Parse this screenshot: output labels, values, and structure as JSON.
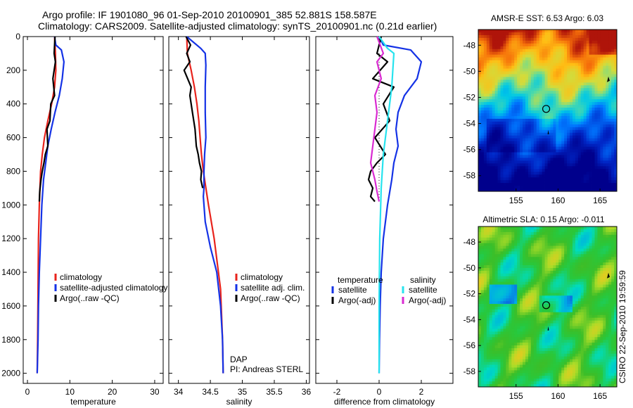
{
  "title": {
    "line1": "Argo profile: IF 1901080_96 01-Sep-2010 20100901_385 52.881S 158.587E",
    "line2": "Climatology: CARS2009. Satellite-adjusted climatology: synTS_20100901.nc (0.21d earlier)"
  },
  "footer_note": "CSIRO 22-Sep-2010 19:59:59",
  "colors": {
    "red": "#e8231c",
    "blue": "#1432e6",
    "black": "#000000",
    "cyan": "#27e3ee",
    "magenta": "#d92ad1"
  },
  "chart_data": [
    {
      "type": "line",
      "id": "temperature",
      "xlabel": "temperature",
      "xlim": [
        -1,
        32
      ],
      "ylim": [
        2060,
        0
      ],
      "xticks": [
        0,
        10,
        20,
        30
      ],
      "yticks": [
        0,
        200,
        400,
        600,
        800,
        1000,
        1200,
        1400,
        1600,
        1800,
        2000
      ],
      "legend": {
        "placement": "lower-middle",
        "entries": [
          {
            "label": "climatology",
            "color": "red"
          },
          {
            "label": "satellite-adjusted climatology",
            "color": "blue"
          },
          {
            "label": "Argo(..raw -QC)",
            "color": "black"
          }
        ]
      },
      "series": [
        {
          "name": "climatology",
          "color": "red",
          "x": [
            6.4,
            6.6,
            6.7,
            6.4,
            5.7,
            4.8,
            4.0,
            3.5,
            3.1,
            2.8,
            2.6,
            2.5,
            2.4,
            2.3
          ],
          "y": [
            0,
            100,
            200,
            300,
            400,
            500,
            600,
            700,
            800,
            1000,
            1200,
            1500,
            1800,
            2000
          ]
        },
        {
          "name": "satellite-adjusted climatology",
          "color": "blue",
          "x": [
            6.4,
            6.7,
            8.0,
            8.6,
            8.2,
            7.5,
            6.5,
            5.6,
            4.8,
            4.3,
            3.8,
            3.4,
            3.1,
            2.8,
            2.6,
            2.5,
            2.3
          ],
          "y": [
            0,
            50,
            80,
            150,
            250,
            350,
            450,
            550,
            650,
            750,
            850,
            1000,
            1200,
            1400,
            1600,
            1800,
            2000
          ]
        },
        {
          "name": "Argo(..raw -QC)",
          "color": "black",
          "x": [
            6.5,
            6.3,
            6.6,
            6.0,
            6.4,
            5.5,
            5.3,
            4.6,
            4.8,
            4.2,
            3.9,
            3.5,
            3.2,
            2.9,
            2.8
          ],
          "y": [
            0,
            100,
            150,
            250,
            350,
            400,
            500,
            550,
            650,
            700,
            750,
            800,
            850,
            920,
            980
          ]
        }
      ]
    },
    {
      "type": "line",
      "id": "salinity",
      "xlabel": "salinity",
      "xlim": [
        33.85,
        36.05
      ],
      "ylim": [
        2060,
        0
      ],
      "xticks": [
        34,
        34.5,
        35,
        35.5,
        36
      ],
      "annotation": [
        "DAP",
        "PI: Andreas STERL"
      ],
      "legend": {
        "placement": "lower-right",
        "entries": [
          {
            "label": "climatology",
            "color": "red"
          },
          {
            "label": "satellite adj. clim.",
            "color": "blue"
          },
          {
            "label": "Argo(..raw -QC)",
            "color": "black"
          }
        ]
      },
      "series": [
        {
          "name": "climatology",
          "color": "red",
          "x": [
            34.13,
            34.14,
            34.2,
            34.25,
            34.29,
            34.32,
            34.34,
            34.36,
            34.39,
            34.47,
            34.56,
            34.66,
            34.69,
            34.7
          ],
          "y": [
            0,
            100,
            200,
            300,
            400,
            500,
            600,
            700,
            800,
            1000,
            1200,
            1500,
            1800,
            2000
          ]
        },
        {
          "name": "satellite adj. clim.",
          "color": "blue",
          "x": [
            34.13,
            34.35,
            34.42,
            34.43,
            34.42,
            34.42,
            34.43,
            34.41,
            34.4,
            34.4,
            34.39,
            34.42,
            34.5,
            34.6,
            34.66,
            34.69,
            34.7
          ],
          "y": [
            0,
            70,
            100,
            170,
            300,
            450,
            600,
            700,
            800,
            900,
            950,
            1100,
            1250,
            1400,
            1600,
            1800,
            2000
          ]
        },
        {
          "name": "Argo(..raw -QC)",
          "color": "black",
          "x": [
            34.12,
            34.19,
            34.13,
            34.18,
            34.09,
            34.2,
            34.18,
            34.22,
            34.26,
            34.28,
            34.31,
            34.33,
            34.36,
            34.35,
            34.38
          ],
          "y": [
            0,
            50,
            100,
            150,
            200,
            300,
            350,
            450,
            550,
            650,
            700,
            750,
            800,
            850,
            900
          ]
        }
      ]
    },
    {
      "type": "line",
      "id": "difference",
      "xlabel": "difference from climatology",
      "xlim": [
        -3,
        3.5
      ],
      "ylim": [
        2060,
        0
      ],
      "xticks": [
        -2,
        0,
        2
      ],
      "legend": {
        "placement": "lower-middle",
        "columns": [
          {
            "header": "temperature",
            "entries": [
              {
                "label": "satellite",
                "color": "blue"
              },
              {
                "label": "Argo(-adj)",
                "color": "black"
              }
            ]
          },
          {
            "header": "salinity",
            "entries": [
              {
                "label": "satellite",
                "color": "cyan"
              },
              {
                "label": "Argo(-adj)",
                "color": "magenta"
              }
            ]
          }
        ]
      },
      "series": [
        {
          "name": "temperature satellite",
          "color": "blue",
          "x": [
            0,
            0.2,
            1.5,
            2.0,
            1.8,
            1.2,
            0.9,
            0.8,
            0.9,
            0.7,
            0.6,
            0.4,
            0.2,
            0.1,
            0.05,
            0.02,
            0
          ],
          "y": [
            0,
            50,
            80,
            150,
            250,
            350,
            450,
            550,
            650,
            750,
            850,
            1000,
            1200,
            1400,
            1600,
            1800,
            2000
          ]
        },
        {
          "name": "temperature Argo(-adj)",
          "color": "black",
          "x": [
            0.1,
            -0.1,
            0.4,
            -0.3,
            0.7,
            0.2,
            0.5,
            -0.2,
            0.3,
            -0.1,
            -0.4,
            -0.5,
            -0.3,
            -0.4,
            -0.2
          ],
          "y": [
            0,
            100,
            150,
            250,
            300,
            400,
            500,
            600,
            700,
            750,
            800,
            850,
            900,
            950,
            980
          ]
        },
        {
          "name": "salinity satellite",
          "color": "cyan",
          "x": [
            0,
            0.4,
            0.7,
            0.6,
            0.4,
            0.2,
            0.1,
            0.03,
            0,
            0
          ],
          "y": [
            0,
            70,
            100,
            300,
            500,
            700,
            900,
            1200,
            1600,
            2000
          ]
        },
        {
          "name": "salinity Argo(-adj)",
          "color": "magenta",
          "x": [
            -0.1,
            0.2,
            -0.1,
            0.1,
            -0.2,
            -0.1,
            -0.2,
            -0.3,
            -0.4,
            -0.2,
            -0.1,
            0
          ],
          "y": [
            0,
            100,
            150,
            250,
            350,
            450,
            550,
            650,
            750,
            850,
            920,
            980
          ]
        }
      ]
    },
    {
      "type": "heatmap",
      "id": "sst-map",
      "title": "AMSR-E SST: 6.53 Argo: 6.03",
      "xlim": [
        150.5,
        167
      ],
      "ylim": [
        -59.2,
        -46.8
      ],
      "xticks": [
        155,
        160,
        165
      ],
      "yticks": [
        -48,
        -50,
        -52,
        -54,
        -56,
        -58
      ],
      "profile_location": [
        158.587,
        -52.881
      ]
    },
    {
      "type": "heatmap",
      "id": "sla-map",
      "title": "Altimetric SLA: 0.15 Argo: -0.011",
      "xlim": [
        150.5,
        167
      ],
      "ylim": [
        -59.2,
        -46.8
      ],
      "xticks": [
        155,
        160,
        165
      ],
      "yticks": [
        -48,
        -50,
        -52,
        -54,
        -56,
        -58
      ],
      "profile_location": [
        158.587,
        -52.881
      ]
    }
  ]
}
